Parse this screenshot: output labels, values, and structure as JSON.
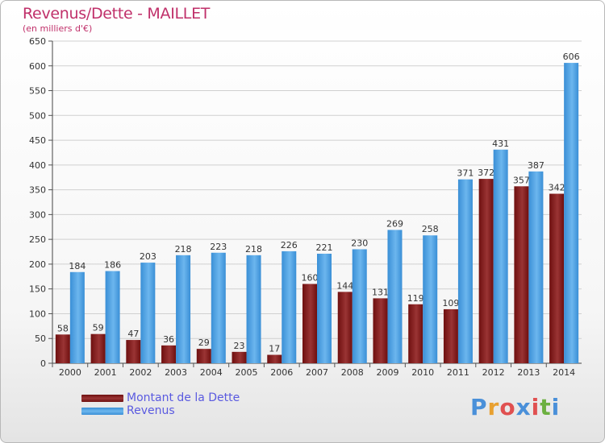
{
  "title": "Revenus/Dette - MAILLET",
  "subtitle": "(en milliers d'€)",
  "logo": {
    "text": "Proxiti",
    "colors": [
      "#4a90d9",
      "#e8a030",
      "#e05050",
      "#4a90d9",
      "#e05050",
      "#6cb040",
      "#4a90d9"
    ]
  },
  "colors": {
    "debt": "#6e0f0f",
    "debt_light": "#9a3434",
    "revenue": "#3a8fd6",
    "revenue_light": "#6cb6ee",
    "title": "#c0306a",
    "legend_text": "#5a5ae0"
  },
  "chart_data": {
    "type": "bar",
    "title": "Revenus/Dette - MAILLET",
    "subtitle": "(en milliers d'€)",
    "categories": [
      "2000",
      "2001",
      "2002",
      "2003",
      "2004",
      "2005",
      "2006",
      "2007",
      "2008",
      "2009",
      "2010",
      "2011",
      "2012",
      "2013",
      "2014"
    ],
    "series": [
      {
        "name": "Montant de la Dette",
        "values": [
          58,
          59,
          47,
          36,
          29,
          23,
          17,
          160,
          144,
          131,
          119,
          109,
          372,
          357,
          342
        ]
      },
      {
        "name": "Revenus",
        "values": [
          184,
          186,
          203,
          218,
          223,
          218,
          226,
          221,
          230,
          269,
          258,
          371,
          431,
          387,
          606
        ]
      }
    ],
    "ylim": [
      0,
      650
    ],
    "yticks": [
      0,
      50,
      100,
      150,
      200,
      250,
      300,
      350,
      400,
      450,
      500,
      550,
      600,
      650
    ],
    "grid": true,
    "legend": "bottom-left"
  }
}
